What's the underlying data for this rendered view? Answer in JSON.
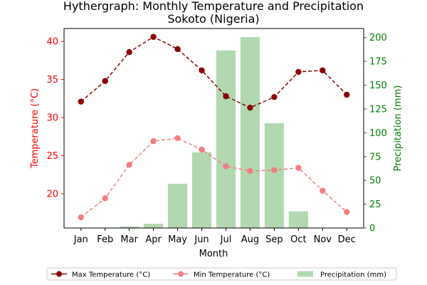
{
  "chart_data": {
    "type": "line+bar",
    "title": "Hythergraph: Monthly Temperature and Precipitation",
    "subtitle": "Sokoto (Nigeria)",
    "xlabel": "Month",
    "ylabel_left": "Temperature (°C)",
    "ylabel_right": "Precipitation (mm)",
    "categories": [
      "Jan",
      "Feb",
      "Mar",
      "Apr",
      "May",
      "Jun",
      "Jul",
      "Aug",
      "Sep",
      "Oct",
      "Nov",
      "Dec"
    ],
    "ylim_left": [
      15.5,
      41.7
    ],
    "ylim_right": [
      0,
      209.5
    ],
    "left_ticks": [
      20,
      25,
      30,
      35,
      40
    ],
    "right_ticks": [
      0,
      25,
      50,
      75,
      100,
      125,
      150,
      175,
      200
    ],
    "series": [
      {
        "name": "Max Temperature (°C)",
        "axis": "left",
        "kind": "line",
        "color": "#8b0000",
        "values": [
          32.1,
          34.8,
          38.6,
          40.6,
          39.0,
          36.2,
          32.8,
          31.3,
          32.7,
          36.0,
          36.2,
          33.0
        ]
      },
      {
        "name": "Min Temperature (°C)",
        "axis": "left",
        "kind": "line",
        "color": "#f08080",
        "values": [
          16.9,
          19.4,
          23.8,
          26.9,
          27.3,
          25.8,
          23.6,
          23.0,
          23.1,
          23.4,
          20.4,
          17.6
        ]
      },
      {
        "name": "Precipitation (mm)",
        "axis": "right",
        "kind": "bar",
        "color": "#b2d8b2",
        "values": [
          0,
          0,
          1.5,
          4.5,
          46.5,
          79.5,
          186.5,
          200.5,
          110,
          17.5,
          0,
          0
        ]
      }
    ],
    "legend_position": "bottom"
  },
  "colors": {
    "left_axis": "#ff0000",
    "right_axis": "#008000",
    "bar": "#b2d8b2"
  }
}
